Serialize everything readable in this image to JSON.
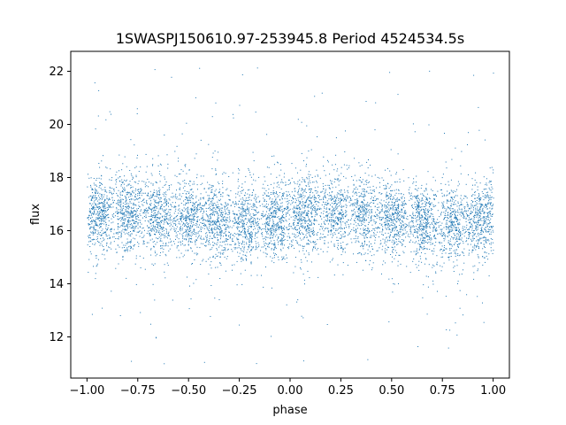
{
  "chart_data": {
    "type": "scatter",
    "title": "1SWASPJ150610.97-253945.8 Period 4524534.5s",
    "xlabel": "phase",
    "ylabel": "flux",
    "xlim": [
      -1.08,
      1.08
    ],
    "ylim": [
      10.45,
      22.75
    ],
    "xticks": [
      -1.0,
      -0.75,
      -0.5,
      -0.25,
      0.0,
      0.25,
      0.5,
      0.75,
      1.0
    ],
    "xtick_labels": [
      "−1.00",
      "−0.75",
      "−0.50",
      "−0.25",
      "0.00",
      "0.25",
      "0.50",
      "0.75",
      "1.00"
    ],
    "yticks": [
      12,
      14,
      16,
      18,
      20,
      22
    ],
    "ytick_labels": [
      "12",
      "14",
      "16",
      "18",
      "20",
      "22"
    ],
    "grid": false,
    "marker_color": "#1f77b4",
    "series_summary": {
      "phase_range": [
        -1.0,
        1.0
      ],
      "typical_flux_band": [
        15.0,
        18.0
      ],
      "flux_center": 16.5,
      "flux_min": 11.0,
      "flux_max": 22.2,
      "note_count_estimate": 30000
    }
  }
}
